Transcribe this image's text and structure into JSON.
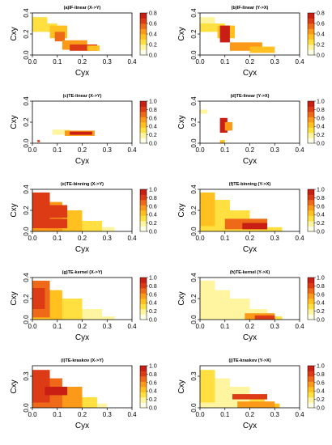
{
  "figure": {
    "colors": {
      "scale": [
        "#FFFFE6",
        "#FFF5A0",
        "#FFE040",
        "#FFC020",
        "#FA9A18",
        "#EE6A18",
        "#DD3A16",
        "#C81E14"
      ],
      "plot_bg": "#FFFFFF",
      "axis": "#000000"
    }
  },
  "chart_data": [
    {
      "type": "heatmap",
      "title": "(a)IF-linear (X->Y)",
      "xlabel": "Cyx",
      "ylabel": "Cxy",
      "xlim": [
        0,
        0.4
      ],
      "ylim": [
        0,
        0.4
      ],
      "xticks": [
        "0.0",
        "0.1",
        "0.2",
        "0.3",
        "0.4"
      ],
      "yticks": [
        "0.0",
        "0.2",
        "0.4"
      ],
      "colorbar": {
        "min": 0,
        "max": 0.8,
        "ticks": [
          "0.0",
          "0.2",
          "0.4",
          "0.6",
          "0.8"
        ]
      },
      "regions": [
        {
          "x": [
            0.0,
            0.06
          ],
          "y": [
            0.24,
            0.36
          ],
          "value": 0.2
        },
        {
          "x": [
            0.0,
            0.1
          ],
          "y": [
            0.22,
            0.3
          ],
          "value": 0.25
        },
        {
          "x": [
            0.07,
            0.14
          ],
          "y": [
            0.16,
            0.28
          ],
          "value": 0.35
        },
        {
          "x": [
            0.09,
            0.13
          ],
          "y": [
            0.13,
            0.22
          ],
          "value": 0.55
        },
        {
          "x": [
            0.12,
            0.22
          ],
          "y": [
            0.05,
            0.14
          ],
          "value": 0.45
        },
        {
          "x": [
            0.15,
            0.26
          ],
          "y": [
            0.04,
            0.1
          ],
          "value": 0.7
        },
        {
          "x": [
            0.22,
            0.27
          ],
          "y": [
            0.04,
            0.09
          ],
          "value": 0.3
        }
      ]
    },
    {
      "type": "heatmap",
      "title": "(b)IF-linear (Y->X)",
      "xlabel": "Cyx",
      "ylabel": "Cxy",
      "xlim": [
        0,
        0.4
      ],
      "ylim": [
        0,
        0.4
      ],
      "xticks": [
        "0.0",
        "0.1",
        "0.2",
        "0.3",
        "0.4"
      ],
      "yticks": [
        "0.0",
        "0.2",
        "0.4"
      ],
      "colorbar": {
        "min": 0,
        "max": 0.8,
        "ticks": [
          "0.0",
          "0.2",
          "0.4",
          "0.6",
          "0.8"
        ]
      },
      "regions": [
        {
          "x": [
            0.0,
            0.06
          ],
          "y": [
            0.24,
            0.36
          ],
          "value": 0.15
        },
        {
          "x": [
            0.0,
            0.1
          ],
          "y": [
            0.22,
            0.3
          ],
          "value": 0.2
        },
        {
          "x": [
            0.07,
            0.14
          ],
          "y": [
            0.16,
            0.28
          ],
          "value": 0.3
        },
        {
          "x": [
            0.08,
            0.12
          ],
          "y": [
            0.12,
            0.28
          ],
          "value": 0.75
        },
        {
          "x": [
            0.12,
            0.25
          ],
          "y": [
            0.04,
            0.12
          ],
          "value": 0.5
        },
        {
          "x": [
            0.2,
            0.3
          ],
          "y": [
            0.02,
            0.08
          ],
          "value": 0.35
        }
      ]
    },
    {
      "type": "heatmap",
      "title": "(c)TE-linear (X->Y)",
      "xlabel": "Cyx",
      "ylabel": "Cxy",
      "xlim": [
        0,
        0.4
      ],
      "ylim": [
        0,
        0.4
      ],
      "xticks": [
        "0.0",
        "0.1",
        "0.2",
        "0.3",
        "0.4"
      ],
      "yticks": [
        "0.0",
        "0.2",
        "0.4"
      ],
      "colorbar": {
        "min": 0,
        "max": 1.0,
        "ticks": [
          "0.0",
          "0.2",
          "0.4",
          "0.6",
          "0.8",
          "1.0"
        ]
      },
      "regions": [
        {
          "x": [
            0.08,
            0.15
          ],
          "y": [
            0.08,
            0.13
          ],
          "value": 0.15
        },
        {
          "x": [
            0.13,
            0.25
          ],
          "y": [
            0.07,
            0.12
          ],
          "value": 0.5
        },
        {
          "x": [
            0.15,
            0.24
          ],
          "y": [
            0.08,
            0.11
          ],
          "value": 0.95
        },
        {
          "x": [
            0.02,
            0.03
          ],
          "y": [
            0.01,
            0.03
          ],
          "value": 0.9
        }
      ]
    },
    {
      "type": "heatmap",
      "title": "(d)TE-linear (Y->X)",
      "xlabel": "Cyx",
      "ylabel": "Cxy",
      "xlim": [
        0,
        0.4
      ],
      "ylim": [
        0,
        0.4
      ],
      "xticks": [
        "0.0",
        "0.1",
        "0.2",
        "0.3",
        "0.4"
      ],
      "yticks": [
        "0.0",
        "0.2",
        "0.4"
      ],
      "colorbar": {
        "min": 0,
        "max": 1.0,
        "ticks": [
          "0.0",
          "0.2",
          "0.4",
          "0.6",
          "0.8",
          "1.0"
        ]
      },
      "regions": [
        {
          "x": [
            0.08,
            0.11
          ],
          "y": [
            0.1,
            0.24
          ],
          "value": 0.95
        },
        {
          "x": [
            0.1,
            0.13
          ],
          "y": [
            0.12,
            0.2
          ],
          "value": 0.6
        },
        {
          "x": [
            0.0,
            0.03
          ],
          "y": [
            0.28,
            0.32
          ],
          "value": 0.15
        },
        {
          "x": [
            0.08,
            0.1
          ],
          "y": [
            0.0,
            0.03
          ],
          "value": 0.4
        }
      ]
    },
    {
      "type": "heatmap",
      "title": "(e)TE-binning (X->Y)",
      "xlabel": "Cyx",
      "ylabel": "Cxy",
      "xlim": [
        0,
        0.4
      ],
      "ylim": [
        0,
        0.4
      ],
      "xticks": [
        "0.0",
        "0.1",
        "0.2",
        "0.3",
        "0.4"
      ],
      "yticks": [
        "0.0",
        "0.2",
        "0.4"
      ],
      "colorbar": {
        "min": 0,
        "max": 1.0,
        "ticks": [
          "0.0",
          "0.2",
          "0.4",
          "0.6",
          "0.8",
          "1.0"
        ]
      },
      "regions": [
        {
          "x": [
            0.0,
            0.33
          ],
          "y": [
            0.0,
            0.04
          ],
          "value": 0.15
        },
        {
          "x": [
            0.0,
            0.28
          ],
          "y": [
            0.0,
            0.1
          ],
          "value": 0.3
        },
        {
          "x": [
            0.0,
            0.2
          ],
          "y": [
            0.0,
            0.2
          ],
          "value": 0.4
        },
        {
          "x": [
            0.0,
            0.12
          ],
          "y": [
            0.0,
            0.28
          ],
          "value": 0.6
        },
        {
          "x": [
            0.0,
            0.07
          ],
          "y": [
            0.03,
            0.37
          ],
          "value": 0.85
        },
        {
          "x": [
            0.07,
            0.14
          ],
          "y": [
            0.13,
            0.25
          ],
          "value": 0.8
        },
        {
          "x": [
            0.06,
            0.14
          ],
          "y": [
            0.03,
            0.12
          ],
          "value": 0.9
        }
      ]
    },
    {
      "type": "heatmap",
      "title": "(f)TE-binning (Y->X)",
      "xlabel": "Cyx",
      "ylabel": "Cxy",
      "xlim": [
        0,
        0.4
      ],
      "ylim": [
        0,
        0.4
      ],
      "xticks": [
        "0.0",
        "0.1",
        "0.2",
        "0.3",
        "0.4"
      ],
      "yticks": [
        "0.0",
        "0.2",
        "0.4"
      ],
      "colorbar": {
        "min": 0,
        "max": 1.0,
        "ticks": [
          "0.0",
          "0.2",
          "0.4",
          "0.6",
          "0.8",
          "1.0"
        ]
      },
      "regions": [
        {
          "x": [
            0.0,
            0.33
          ],
          "y": [
            0.0,
            0.04
          ],
          "value": 0.35
        },
        {
          "x": [
            0.0,
            0.27
          ],
          "y": [
            0.0,
            0.12
          ],
          "value": 0.3
        },
        {
          "x": [
            0.0,
            0.2
          ],
          "y": [
            0.0,
            0.2
          ],
          "value": 0.25
        },
        {
          "x": [
            0.0,
            0.12
          ],
          "y": [
            0.0,
            0.3
          ],
          "value": 0.3
        },
        {
          "x": [
            0.0,
            0.06
          ],
          "y": [
            0.05,
            0.37
          ],
          "value": 0.4
        },
        {
          "x": [
            0.1,
            0.27
          ],
          "y": [
            0.02,
            0.12
          ],
          "value": 0.7
        },
        {
          "x": [
            0.17,
            0.27
          ],
          "y": [
            0.02,
            0.08
          ],
          "value": 0.95
        }
      ]
    },
    {
      "type": "heatmap",
      "title": "(g)TE-kernel (X->Y)",
      "xlabel": "Cyx",
      "ylabel": "Cxy",
      "xlim": [
        0,
        0.4
      ],
      "ylim": [
        0,
        0.4
      ],
      "xticks": [
        "0.0",
        "0.1",
        "0.2",
        "0.3",
        "0.4"
      ],
      "yticks": [
        "0.0",
        "0.2",
        "0.4"
      ],
      "colorbar": {
        "min": 0,
        "max": 1.0,
        "ticks": [
          "0.0",
          "0.2",
          "0.4",
          "0.6",
          "0.8",
          "1.0"
        ]
      },
      "regions": [
        {
          "x": [
            0.0,
            0.33
          ],
          "y": [
            0.0,
            0.03
          ],
          "value": 0.15
        },
        {
          "x": [
            0.0,
            0.28
          ],
          "y": [
            0.0,
            0.1
          ],
          "value": 0.2
        },
        {
          "x": [
            0.0,
            0.2
          ],
          "y": [
            0.0,
            0.2
          ],
          "value": 0.3
        },
        {
          "x": [
            0.0,
            0.12
          ],
          "y": [
            0.0,
            0.28
          ],
          "value": 0.45
        },
        {
          "x": [
            0.0,
            0.07
          ],
          "y": [
            0.02,
            0.37
          ],
          "value": 0.65
        },
        {
          "x": [
            0.0,
            0.05
          ],
          "y": [
            0.1,
            0.3
          ],
          "value": 0.85
        }
      ]
    },
    {
      "type": "heatmap",
      "title": "(h)TE-kernel (Y->X)",
      "xlabel": "Cyx",
      "ylabel": "Cxy",
      "xlim": [
        0,
        0.4
      ],
      "ylim": [
        0,
        0.4
      ],
      "xticks": [
        "0.0",
        "0.1",
        "0.2",
        "0.3",
        "0.4"
      ],
      "yticks": [
        "0.0",
        "0.2",
        "0.4"
      ],
      "colorbar": {
        "min": 0,
        "max": 1.0,
        "ticks": [
          "0.0",
          "0.2",
          "0.4",
          "0.6",
          "0.8",
          "1.0"
        ]
      },
      "regions": [
        {
          "x": [
            0.0,
            0.33
          ],
          "y": [
            0.0,
            0.03
          ],
          "value": 0.3
        },
        {
          "x": [
            0.0,
            0.27
          ],
          "y": [
            0.0,
            0.1
          ],
          "value": 0.2
        },
        {
          "x": [
            0.0,
            0.2
          ],
          "y": [
            0.0,
            0.2
          ],
          "value": 0.15
        },
        {
          "x": [
            0.0,
            0.12
          ],
          "y": [
            0.0,
            0.28
          ],
          "value": 0.15
        },
        {
          "x": [
            0.0,
            0.06
          ],
          "y": [
            0.05,
            0.37
          ],
          "value": 0.2
        },
        {
          "x": [
            0.18,
            0.3
          ],
          "y": [
            0.0,
            0.06
          ],
          "value": 0.55
        },
        {
          "x": [
            0.22,
            0.3
          ],
          "y": [
            0.0,
            0.04
          ],
          "value": 0.85
        }
      ]
    },
    {
      "type": "heatmap",
      "title": "(i)TE-kraskov (X->Y)",
      "xlabel": "Cyx",
      "ylabel": "Cxy",
      "xlim": [
        0,
        0.4
      ],
      "ylim": [
        0,
        0.4
      ],
      "xticks": [
        "0.0",
        "0.1",
        "0.2",
        "0.3",
        "0.4"
      ],
      "yticks": [
        "0.0",
        "0.3"
      ],
      "colorbar": {
        "min": 0,
        "max": 1.0,
        "ticks": [
          "0.0",
          "0.2",
          "0.4",
          "0.6",
          "0.8",
          "1.0"
        ]
      },
      "regions": [
        {
          "x": [
            0.0,
            0.3
          ],
          "y": [
            0.0,
            0.04
          ],
          "value": 0.2
        },
        {
          "x": [
            0.0,
            0.26
          ],
          "y": [
            0.0,
            0.1
          ],
          "value": 0.35
        },
        {
          "x": [
            0.0,
            0.2
          ],
          "y": [
            0.0,
            0.2
          ],
          "value": 0.5
        },
        {
          "x": [
            0.0,
            0.12
          ],
          "y": [
            0.0,
            0.28
          ],
          "value": 0.7
        },
        {
          "x": [
            0.0,
            0.07
          ],
          "y": [
            0.05,
            0.36
          ],
          "value": 0.9
        },
        {
          "x": [
            0.05,
            0.14
          ],
          "y": [
            0.12,
            0.2
          ],
          "value": 0.95
        }
      ]
    },
    {
      "type": "heatmap",
      "title": "(j)TE-kraskov (Y->X)",
      "xlabel": "Cyx",
      "ylabel": "Cxy",
      "xlim": [
        0,
        0.4
      ],
      "ylim": [
        0,
        0.4
      ],
      "xticks": [
        "0.0",
        "0.1",
        "0.2",
        "0.3",
        "0.4"
      ],
      "yticks": [
        "0.0",
        "0.3"
      ],
      "colorbar": {
        "min": 0,
        "max": 1.0,
        "ticks": [
          "0.0",
          "0.2",
          "0.4",
          "0.6",
          "0.8",
          "1.0"
        ]
      },
      "regions": [
        {
          "x": [
            0.0,
            0.32
          ],
          "y": [
            0.0,
            0.04
          ],
          "value": 0.45
        },
        {
          "x": [
            0.0,
            0.26
          ],
          "y": [
            0.0,
            0.1
          ],
          "value": 0.3
        },
        {
          "x": [
            0.0,
            0.2
          ],
          "y": [
            0.0,
            0.2
          ],
          "value": 0.2
        },
        {
          "x": [
            0.0,
            0.12
          ],
          "y": [
            0.0,
            0.28
          ],
          "value": 0.2
        },
        {
          "x": [
            0.0,
            0.06
          ],
          "y": [
            0.05,
            0.36
          ],
          "value": 0.25
        },
        {
          "x": [
            0.13,
            0.27
          ],
          "y": [
            0.08,
            0.13
          ],
          "value": 0.85
        },
        {
          "x": [
            0.15,
            0.3
          ],
          "y": [
            0.0,
            0.06
          ],
          "value": 0.6
        }
      ]
    }
  ]
}
